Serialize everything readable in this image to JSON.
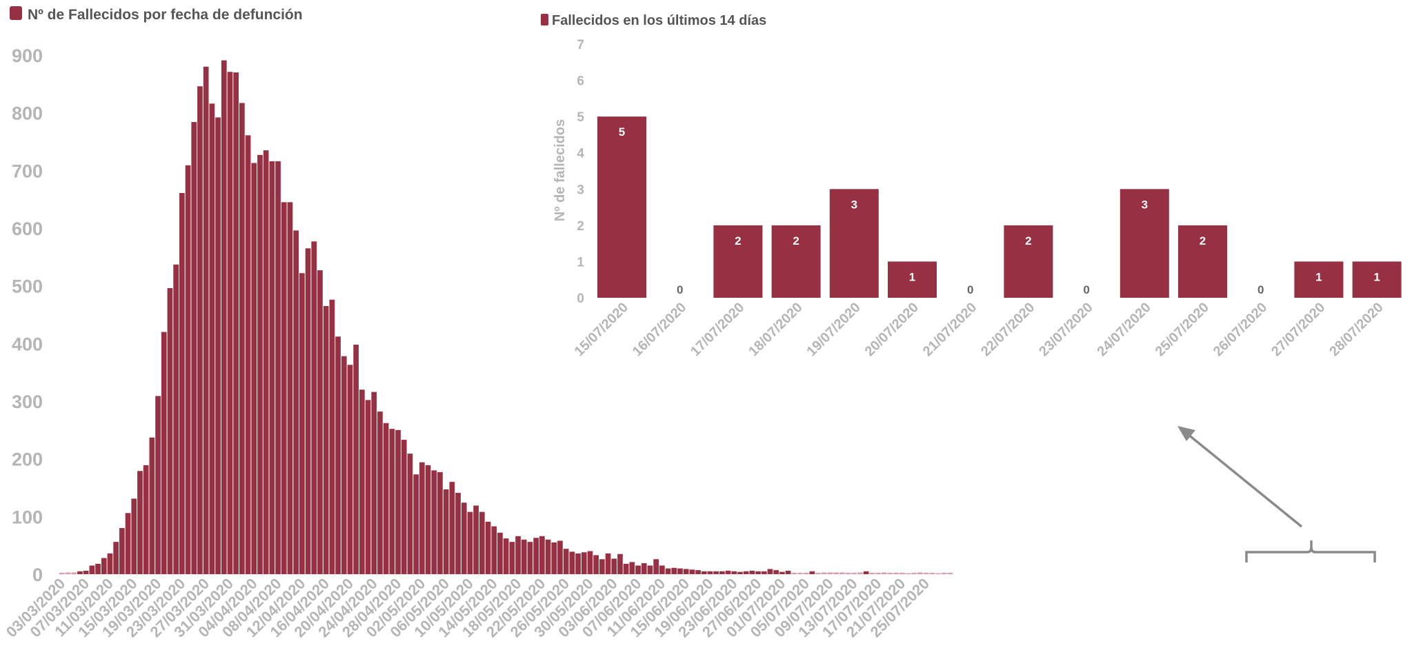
{
  "colors": {
    "bar": "#963042",
    "bar_faint": "#d99aa6",
    "tick": "#b5b5b5",
    "legend_text": "#555555",
    "arrow": "#8a8a8a"
  },
  "chart_data": [
    {
      "type": "bar",
      "title": "Nº de Fallecidos por fecha de defunción",
      "legend_label": "Nº de Fallecidos por fecha de defunción",
      "ylim": [
        0,
        900
      ],
      "yticks": [
        "0",
        "100",
        "200",
        "300",
        "400",
        "500",
        "600",
        "700",
        "800",
        "900"
      ],
      "start_date": "2020-03-03",
      "xtick_labels": [
        "03/03/2020",
        "07/03/2020",
        "11/03/2020",
        "15/03/2020",
        "19/03/2020",
        "23/03/2020",
        "27/03/2020",
        "31/03/2020",
        "04/04/2020",
        "08/04/2020",
        "12/04/2020",
        "16/04/2020",
        "20/04/2020",
        "24/04/2020",
        "28/04/2020",
        "02/05/2020",
        "06/05/2020",
        "10/05/2020",
        "14/05/2020",
        "18/05/2020",
        "22/05/2020",
        "26/05/2020",
        "30/05/2020",
        "03/06/2020",
        "07/06/2020",
        "11/06/2020",
        "15/06/2020",
        "19/06/2020",
        "23/06/2020",
        "27/06/2020",
        "01/07/2020",
        "05/07/2020",
        "09/07/2020",
        "13/07/2020",
        "17/07/2020",
        "21/07/2020",
        "25/07/2020"
      ],
      "values": [
        1,
        3,
        3,
        5,
        6,
        15,
        18,
        28,
        36,
        56,
        80,
        106,
        131,
        179,
        189,
        237,
        309,
        420,
        496,
        537,
        661,
        709,
        784,
        846,
        880,
        816,
        792,
        891,
        871,
        870,
        817,
        761,
        713,
        727,
        735,
        716,
        716,
        645,
        645,
        596,
        522,
        565,
        577,
        527,
        465,
        476,
        412,
        378,
        363,
        398,
        320,
        302,
        316,
        282,
        262,
        252,
        250,
        233,
        209,
        173,
        194,
        189,
        180,
        177,
        147,
        160,
        141,
        124,
        108,
        119,
        108,
        91,
        83,
        72,
        62,
        56,
        66,
        60,
        56,
        63,
        66,
        60,
        55,
        58,
        44,
        39,
        36,
        38,
        40,
        33,
        26,
        36,
        27,
        35,
        18,
        21,
        15,
        19,
        15,
        26,
        15,
        10,
        11,
        10,
        9,
        8,
        7,
        5,
        5,
        5,
        5,
        6,
        5,
        4,
        5,
        6,
        5,
        5,
        9,
        7,
        4,
        6,
        2,
        2,
        2,
        5,
        2,
        3,
        3,
        3,
        3,
        2,
        2,
        3,
        5,
        2,
        2,
        3,
        2,
        1,
        2,
        0,
        2,
        3,
        2,
        1,
        0,
        1,
        1
      ]
    },
    {
      "type": "bar",
      "title": "Fallecidos en los últimos 14 días",
      "legend_label": "Fallecidos en los últimos 14 días",
      "ylabel": "Nº de fallecidos",
      "ylim": [
        0,
        7
      ],
      "yticks": [
        "0",
        "1",
        "2",
        "3",
        "4",
        "5",
        "6",
        "7"
      ],
      "categories": [
        "15/07/2020",
        "16/07/2020",
        "17/07/2020",
        "18/07/2020",
        "19/07/2020",
        "20/07/2020",
        "21/07/2020",
        "22/07/2020",
        "23/07/2020",
        "24/07/2020",
        "25/07/2020",
        "26/07/2020",
        "27/07/2020",
        "28/07/2020"
      ],
      "values": [
        5,
        0,
        2,
        2,
        3,
        1,
        0,
        2,
        0,
        3,
        2,
        0,
        1,
        1
      ],
      "data_labels": [
        "5",
        "0",
        "2",
        "2",
        "3",
        "1",
        "0",
        "2",
        "0",
        "3",
        "2",
        "0",
        "1",
        "1"
      ]
    }
  ]
}
